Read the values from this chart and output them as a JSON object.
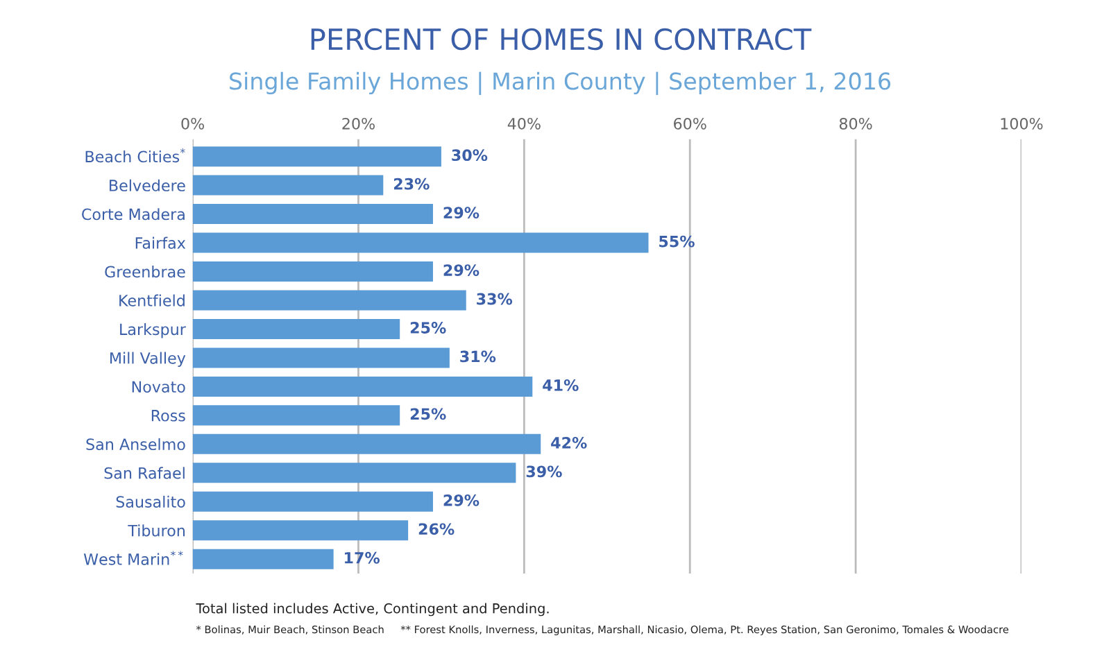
{
  "chart_data": {
    "type": "bar",
    "orientation": "horizontal",
    "title": "PERCENT OF HOMES IN CONTRACT",
    "subtitle": "Single Family Homes | Marin County | September 1, 2016",
    "categories": [
      "Beach Cities$^{*}$",
      "Belvedere",
      "Corte Madera",
      "Fairfax",
      "Greenbrae",
      "Kentfield",
      "Larkspur",
      "Mill Valley",
      "Novato",
      "Ross",
      "San Anselmo",
      "San Rafael",
      "Sausalito",
      "Tiburon",
      "West Marin$^{**}$"
    ],
    "values": [
      30,
      23,
      29,
      55,
      29,
      33,
      25,
      31,
      41,
      25,
      42,
      39,
      29,
      26,
      17
    ],
    "value_labels": [
      "30%",
      "23%",
      "29%",
      "55%",
      "29%",
      "33%",
      "25%",
      "31%",
      "41%",
      "25%",
      "42%",
      "39%",
      "29%",
      "26%",
      "17%"
    ],
    "color": "#5b9bd5",
    "xlim": [
      0,
      100
    ],
    "xticks": [
      {
        "value": 0,
        "label": "0%"
      },
      {
        "value": 20,
        "label": "20%"
      },
      {
        "value": 40,
        "label": "40%"
      },
      {
        "value": 60,
        "label": "60%"
      },
      {
        "value": 80,
        "label": "80%"
      },
      {
        "value": 100,
        "label": "100%"
      }
    ],
    "grid": "x",
    "annotations": [
      "Total listed includes Active, Contingent and Pending.",
      "* Bolinas, Muir Beach, Stinson Beach     ** Forest Knolls, Inverness, Lagunitas, Marshall, Nicasio, Olema, Pt. Reyes Station, San Geronimo, Tomales & Woodacre"
    ]
  }
}
